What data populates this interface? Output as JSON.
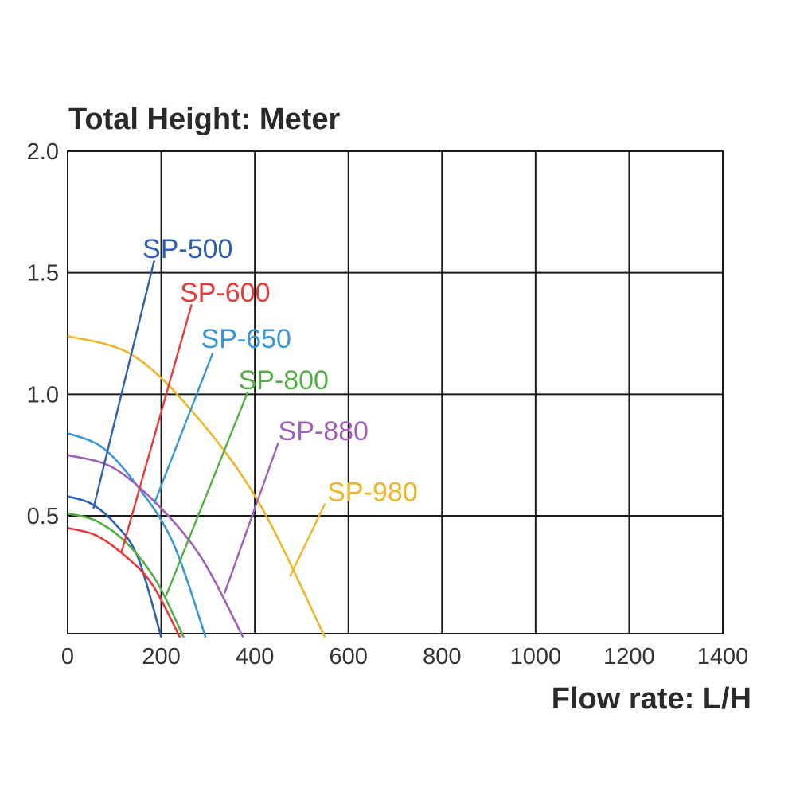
{
  "chart_data": {
    "type": "line",
    "title": "",
    "ylabel": "Total Height:  Meter",
    "xlabel": "Flow rate:  L/H",
    "xlim": [
      0,
      1400
    ],
    "ylim": [
      0,
      2.0
    ],
    "x_ticks": [
      0,
      200,
      400,
      600,
      800,
      1000,
      1200,
      1400
    ],
    "x_tick_labels": [
      "0",
      "200",
      "400",
      "600",
      "800",
      "1000",
      "1200",
      "1400"
    ],
    "y_ticks": [
      0.5,
      1.0,
      1.5,
      2.0
    ],
    "y_tick_labels": [
      "0.5",
      "1.0",
      "1.5",
      "2.0"
    ],
    "grid": true,
    "series": [
      {
        "name": "SP-500",
        "color": "#2f5fb3",
        "max_head": 0.58,
        "max_flow": 200,
        "points": [
          [
            0,
            0.58
          ],
          [
            50,
            0.55
          ],
          [
            100,
            0.47
          ],
          [
            150,
            0.33
          ],
          [
            200,
            0.0
          ]
        ],
        "label_value": [
          160,
          1.6
        ],
        "leader": [
          [
            185,
            1.55
          ],
          [
            55,
            0.53
          ]
        ]
      },
      {
        "name": "SP-600",
        "color": "#e83a3a",
        "max_head": 0.45,
        "max_flow": 240,
        "points": [
          [
            0,
            0.45
          ],
          [
            60,
            0.42
          ],
          [
            120,
            0.34
          ],
          [
            180,
            0.22
          ],
          [
            240,
            0.0
          ]
        ],
        "label_value": [
          240,
          1.42
        ],
        "leader": [
          [
            265,
            1.37
          ],
          [
            115,
            0.35
          ]
        ]
      },
      {
        "name": "SP-650",
        "color": "#3a97d6",
        "max_head": 0.84,
        "max_flow": 295,
        "points": [
          [
            0,
            0.84
          ],
          [
            75,
            0.78
          ],
          [
            150,
            0.62
          ],
          [
            225,
            0.39
          ],
          [
            295,
            0.0
          ]
        ],
        "label_value": [
          285,
          1.23
        ],
        "leader": [
          [
            310,
            1.17
          ],
          [
            185,
            0.55
          ]
        ]
      },
      {
        "name": "SP-800",
        "color": "#55ad45",
        "max_head": 0.51,
        "max_flow": 248,
        "points": [
          [
            0,
            0.51
          ],
          [
            60,
            0.48
          ],
          [
            125,
            0.39
          ],
          [
            190,
            0.23
          ],
          [
            248,
            0.0
          ]
        ],
        "label_value": [
          365,
          1.06
        ],
        "leader": [
          [
            385,
            1.01
          ],
          [
            210,
            0.17
          ]
        ]
      },
      {
        "name": "SP-880",
        "color": "#a060b8",
        "max_head": 0.75,
        "max_flow": 375,
        "points": [
          [
            0,
            0.75
          ],
          [
            95,
            0.7
          ],
          [
            190,
            0.55
          ],
          [
            285,
            0.33
          ],
          [
            375,
            0.0
          ]
        ],
        "label_value": [
          450,
          0.85
        ],
        "leader": [
          [
            450,
            0.8
          ],
          [
            335,
            0.18
          ]
        ]
      },
      {
        "name": "SP-980",
        "color": "#f0b62a",
        "max_head": 1.24,
        "max_flow": 550,
        "points": [
          [
            0,
            1.24
          ],
          [
            140,
            1.16
          ],
          [
            275,
            0.91
          ],
          [
            410,
            0.55
          ],
          [
            550,
            0.0
          ]
        ],
        "label_value": [
          555,
          0.6
        ],
        "leader": [
          [
            550,
            0.55
          ],
          [
            475,
            0.25
          ]
        ]
      }
    ]
  }
}
